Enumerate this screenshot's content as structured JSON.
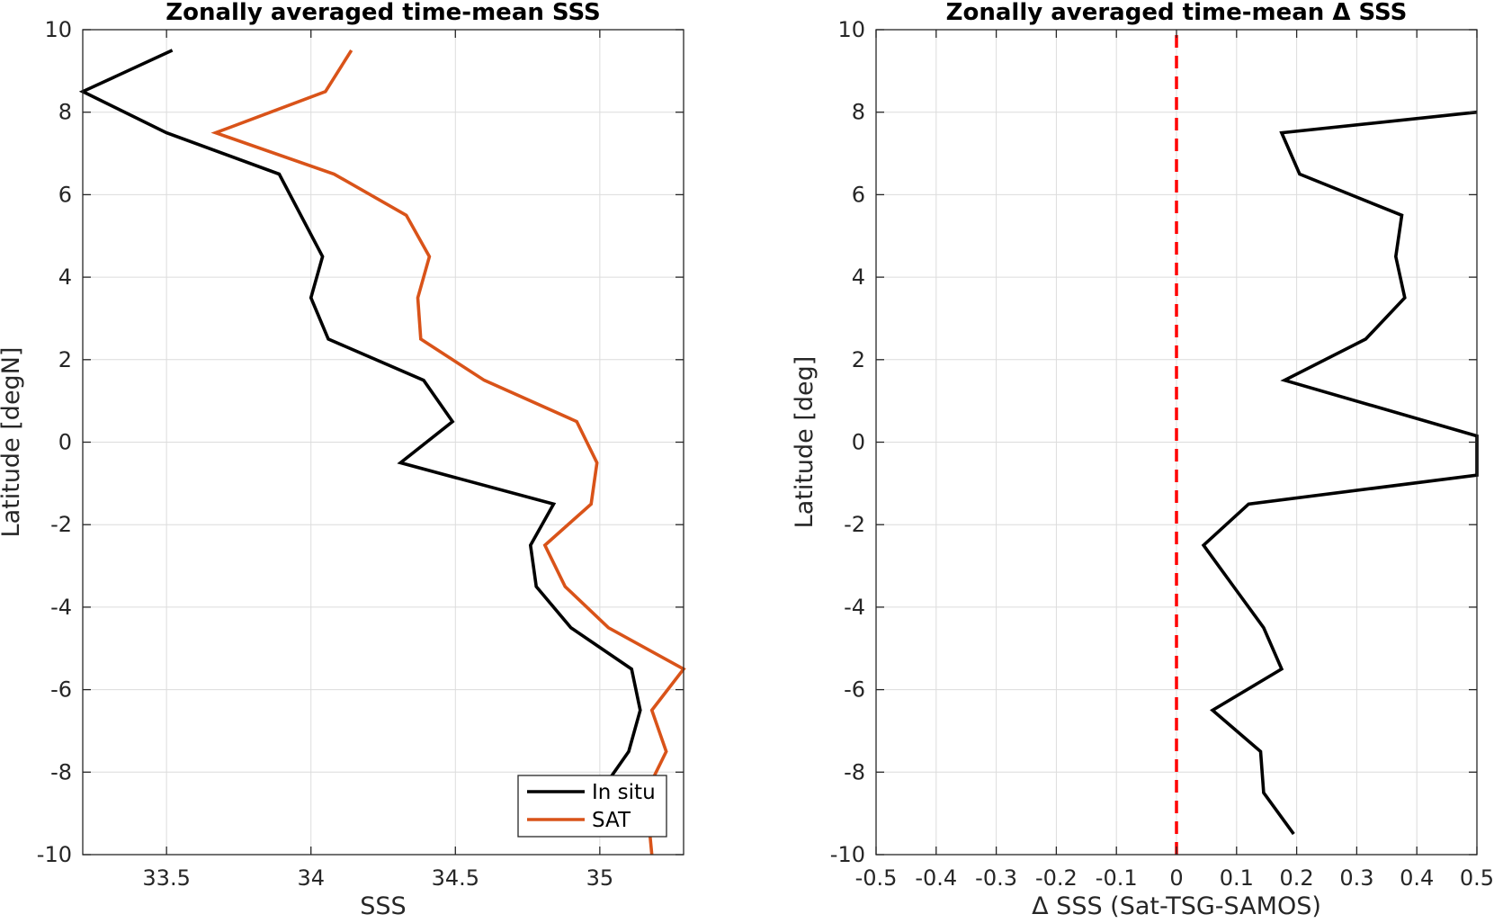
{
  "chart_data": [
    {
      "type": "line",
      "title": "Zonally averaged time-mean SSS",
      "xlabel": "SSS",
      "ylabel": "Latitude [degN]",
      "xlim": [
        33.21,
        35.29
      ],
      "ylim": [
        -10,
        10
      ],
      "xticks": [
        33.5,
        34,
        34.5,
        35
      ],
      "xtick_labels": [
        "33.5",
        "34",
        "34.5",
        "35"
      ],
      "yticks": [
        10,
        8,
        6,
        4,
        2,
        0,
        -2,
        -4,
        -6,
        -8,
        -10
      ],
      "ytick_labels": [
        "10",
        "8",
        "6",
        "4",
        "2",
        "0",
        "-2",
        "-4",
        "-6",
        "-8",
        "-10"
      ],
      "grid": true,
      "legend_position": "bottom-right",
      "series": [
        {
          "name": "In situ",
          "color": "#000000",
          "points": [
            [
              33.52,
              9.5
            ],
            [
              33.21,
              8.5
            ],
            [
              33.5,
              7.5
            ],
            [
              33.89,
              6.5
            ],
            [
              34.04,
              4.5
            ],
            [
              34.0,
              3.5
            ],
            [
              34.06,
              2.5
            ],
            [
              34.39,
              1.5
            ],
            [
              34.49,
              0.5
            ],
            [
              34.31,
              -0.5
            ],
            [
              34.84,
              -1.5
            ],
            [
              34.76,
              -2.5
            ],
            [
              34.78,
              -3.5
            ],
            [
              34.9,
              -4.5
            ],
            [
              35.11,
              -5.5
            ],
            [
              35.14,
              -6.5
            ],
            [
              35.1,
              -7.5
            ],
            [
              35.0,
              -8.5
            ]
          ]
        },
        {
          "name": "SAT",
          "color": "#d95319",
          "points": [
            [
              34.14,
              9.5
            ],
            [
              34.05,
              8.5
            ],
            [
              33.67,
              7.5
            ],
            [
              34.08,
              6.5
            ],
            [
              34.33,
              5.5
            ],
            [
              34.41,
              4.5
            ],
            [
              34.37,
              3.5
            ],
            [
              34.38,
              2.5
            ],
            [
              34.6,
              1.5
            ],
            [
              34.92,
              0.5
            ],
            [
              34.99,
              -0.5
            ],
            [
              34.97,
              -1.5
            ],
            [
              34.81,
              -2.5
            ],
            [
              34.88,
              -3.5
            ],
            [
              35.03,
              -4.5
            ],
            [
              35.29,
              -5.5
            ],
            [
              35.18,
              -6.5
            ],
            [
              35.23,
              -7.5
            ],
            [
              35.16,
              -8.5
            ],
            [
              35.18,
              -10.0
            ]
          ]
        }
      ]
    },
    {
      "type": "line",
      "title": "Zonally averaged time-mean Δ SSS",
      "xlabel": "Δ SSS (Sat-TSG-SAMOS)",
      "ylabel": "Latitude [deg]",
      "xlim": [
        -0.5,
        0.5
      ],
      "ylim": [
        -10,
        10
      ],
      "xticks": [
        -0.5,
        -0.4,
        -0.3,
        -0.2,
        -0.1,
        0,
        0.1,
        0.2,
        0.3,
        0.4,
        0.5
      ],
      "xtick_labels": [
        "-0.5",
        "-0.4",
        "-0.3",
        "-0.2",
        "-0.1",
        "0",
        "0.1",
        "0.2",
        "0.3",
        "0.4",
        "0.5"
      ],
      "yticks": [
        10,
        8,
        6,
        4,
        2,
        0,
        -2,
        -4,
        -6,
        -8,
        -10
      ],
      "ytick_labels": [
        "10",
        "8",
        "6",
        "4",
        "2",
        "0",
        "-2",
        "-4",
        "-6",
        "-8",
        "-10"
      ],
      "grid": true,
      "reference_line": {
        "x": 0,
        "color": "#ff0000",
        "style": "dashed"
      },
      "series": [
        {
          "color": "#000000",
          "points": [
            [
              0.5,
              8.0
            ],
            [
              0.175,
              7.5
            ],
            [
              0.205,
              6.5
            ],
            [
              0.375,
              5.5
            ],
            [
              0.365,
              4.5
            ],
            [
              0.38,
              3.5
            ],
            [
              0.315,
              2.5
            ],
            [
              0.18,
              1.5
            ],
            [
              0.5,
              0.15
            ],
            [
              0.5,
              -0.8
            ],
            [
              0.12,
              -1.5
            ],
            [
              0.045,
              -2.5
            ],
            [
              0.095,
              -3.5
            ],
            [
              0.145,
              -4.5
            ],
            [
              0.175,
              -5.5
            ],
            [
              0.06,
              -6.5
            ],
            [
              0.14,
              -7.5
            ],
            [
              0.145,
              -8.5
            ],
            [
              0.195,
              -9.5
            ]
          ]
        }
      ]
    }
  ]
}
